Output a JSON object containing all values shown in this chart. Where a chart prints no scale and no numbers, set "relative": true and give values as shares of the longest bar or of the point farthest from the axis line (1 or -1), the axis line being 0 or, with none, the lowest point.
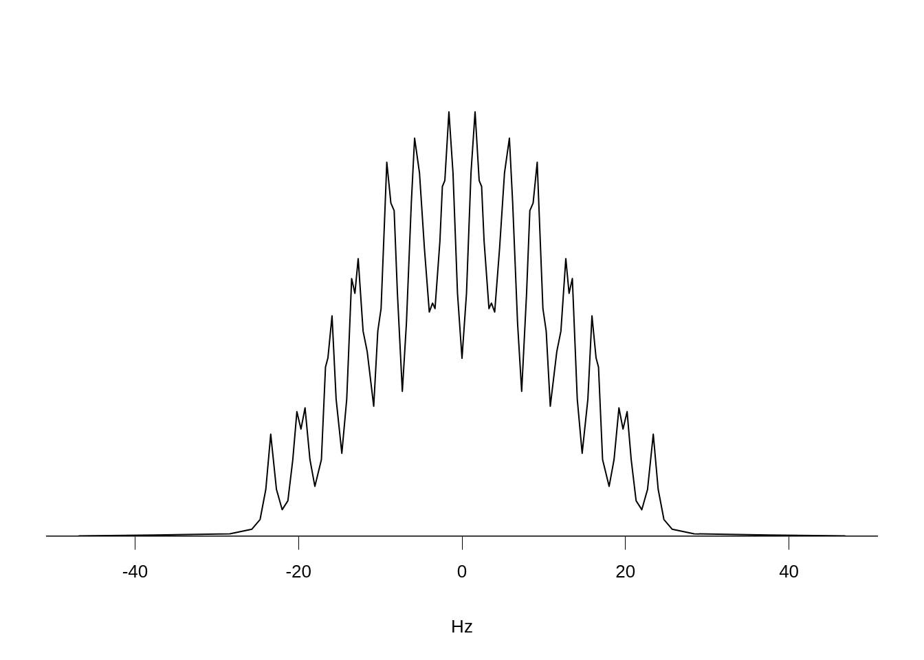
{
  "chart_data": {
    "type": "line",
    "relative": true,
    "xlabel": "Hz",
    "xlim": [
      -50.8,
      50.8
    ],
    "xticks": [
      -40,
      -20,
      0,
      20,
      40
    ],
    "marker": "none",
    "line_style": "solid",
    "legend": false,
    "tick_labels": "x",
    "x": [
      -46.9,
      -37.6,
      -28.4,
      -25.7,
      -24.7,
      -24.0,
      -23.4,
      -22.7,
      -22.0,
      -21.3,
      -20.7,
      -20.2,
      -19.7,
      -19.2,
      -18.6,
      -18.0,
      -17.2,
      -16.7,
      -16.4,
      -15.9,
      -15.4,
      -14.7,
      -14.1,
      -13.5,
      -13.1,
      -12.7,
      -12.1,
      -11.6,
      -10.8,
      -10.3,
      -9.9,
      -9.5,
      -9.2,
      -8.7,
      -8.3,
      -7.9,
      -7.3,
      -6.8,
      -6.2,
      -5.8,
      -5.2,
      -4.6,
      -4.0,
      -3.6,
      -3.3,
      -2.7,
      -2.4,
      -2.1,
      -1.6,
      -1.1,
      -0.55,
      0,
      0.55,
      1.1,
      1.6,
      2.1,
      2.4,
      2.7,
      3.3,
      3.6,
      4.0,
      4.6,
      5.2,
      5.8,
      6.2,
      6.8,
      7.3,
      7.9,
      8.3,
      8.7,
      9.2,
      9.5,
      9.9,
      10.3,
      10.8,
      11.6,
      12.1,
      12.7,
      13.1,
      13.5,
      14.1,
      14.7,
      15.4,
      15.9,
      16.4,
      16.7,
      17.2,
      18.0,
      18.6,
      19.2,
      19.7,
      20.2,
      20.7,
      21.3,
      22.0,
      22.7,
      23.4,
      24.0,
      24.7,
      25.7,
      28.4,
      37.6,
      46.9
    ],
    "series": [
      {
        "color": "#000000",
        "values": [
          0,
          0.002,
          0.005,
          0.016,
          0.039,
          0.11,
          0.24,
          0.11,
          0.062,
          0.083,
          0.18,
          0.293,
          0.252,
          0.302,
          0.18,
          0.117,
          0.18,
          0.398,
          0.42,
          0.519,
          0.323,
          0.195,
          0.323,
          0.607,
          0.572,
          0.654,
          0.483,
          0.435,
          0.306,
          0.483,
          0.536,
          0.732,
          0.881,
          0.785,
          0.767,
          0.572,
          0.341,
          0.501,
          0.785,
          0.938,
          0.856,
          0.679,
          0.528,
          0.549,
          0.536,
          0.696,
          0.824,
          0.838,
          1.0,
          0.856,
          0.572,
          0.419,
          0.572,
          0.856,
          1.0,
          0.838,
          0.824,
          0.696,
          0.536,
          0.549,
          0.528,
          0.679,
          0.856,
          0.938,
          0.785,
          0.501,
          0.341,
          0.572,
          0.767,
          0.785,
          0.881,
          0.732,
          0.536,
          0.483,
          0.306,
          0.435,
          0.483,
          0.654,
          0.572,
          0.607,
          0.323,
          0.195,
          0.323,
          0.519,
          0.42,
          0.398,
          0.18,
          0.117,
          0.18,
          0.302,
          0.252,
          0.293,
          0.18,
          0.083,
          0.062,
          0.11,
          0.24,
          0.11,
          0.039,
          0.016,
          0.005,
          0.002,
          0
        ]
      }
    ]
  }
}
